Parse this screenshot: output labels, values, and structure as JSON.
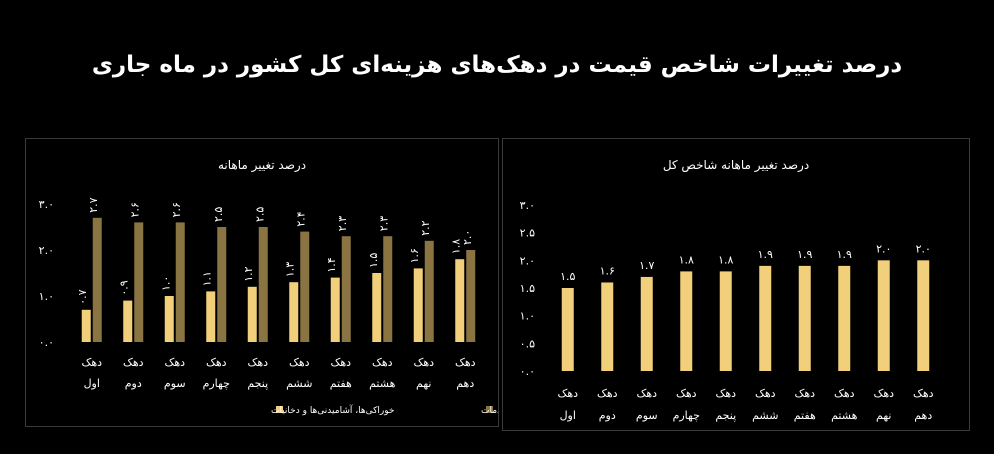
{
  "page_title": "درصد تغییرات شاخص قیمت در دهک‌های هزینه‌ای کل کشور در ماه جاری",
  "colors": {
    "background": "#000000",
    "food": "#f2cf7a",
    "nonfood": "#8a7442",
    "single": "#f2cf7a",
    "text": "#ffffff"
  },
  "chart_data": [
    {
      "type": "bar",
      "title": "درصد تغییر ماهانه",
      "categories": [
        [
          "دهک",
          "اول"
        ],
        [
          "دهک",
          "دوم"
        ],
        [
          "دهک",
          "سوم"
        ],
        [
          "دهک",
          "چهارم"
        ],
        [
          "دهک",
          "پنجم"
        ],
        [
          "دهک",
          "ششم"
        ],
        [
          "دهک",
          "هفتم"
        ],
        [
          "دهک",
          "هشتم"
        ],
        [
          "دهک",
          "نهم"
        ],
        [
          "دهک",
          "دهم"
        ]
      ],
      "series": [
        {
          "name": "خوراکی‌ها، آشامیدنی‌ها و دخانیات",
          "values": [
            0.7,
            0.9,
            1.0,
            1.1,
            1.2,
            1.3,
            1.4,
            1.5,
            1.6,
            1.8
          ],
          "labels": [
            "۰.۷",
            "۰.۹",
            "۱.۰",
            "۱.۱",
            "۱.۲",
            "۱.۳",
            "۱.۴",
            "۱.۵",
            "۱.۶",
            "۱.۸"
          ]
        },
        {
          "name": "کالاهای غیرخوراکی و خدمات",
          "values": [
            2.7,
            2.6,
            2.6,
            2.5,
            2.5,
            2.4,
            2.3,
            2.3,
            2.2,
            2.0
          ],
          "labels": [
            "۲.۷",
            "۲.۶",
            "۲.۶",
            "۲.۵",
            "۲.۵",
            "۲.۴",
            "۲.۳",
            "۲.۳",
            "۲.۲",
            "۲.۰"
          ]
        }
      ],
      "yticks": [
        0,
        1,
        2,
        3
      ],
      "ytick_labels": [
        "۰.۰",
        "۱.۰",
        "۲.۰",
        "۳.۰"
      ],
      "ylim": [
        0,
        3
      ],
      "grid": false,
      "legend_position": "bottom"
    },
    {
      "type": "bar",
      "title": "درصد تغییر ماهانه شاخص کل",
      "categories": [
        [
          "دهک",
          "اول"
        ],
        [
          "دهک",
          "دوم"
        ],
        [
          "دهک",
          "سوم"
        ],
        [
          "دهک",
          "چهارم"
        ],
        [
          "دهک",
          "پنجم"
        ],
        [
          "دهک",
          "ششم"
        ],
        [
          "دهک",
          "هفتم"
        ],
        [
          "دهک",
          "هشتم"
        ],
        [
          "دهک",
          "نهم"
        ],
        [
          "دهک",
          "دهم"
        ]
      ],
      "series": [
        {
          "values": [
            1.5,
            1.6,
            1.7,
            1.8,
            1.8,
            1.9,
            1.9,
            1.9,
            2.0,
            2.0
          ],
          "labels": [
            "۱.۵",
            "۱.۶",
            "۱.۷",
            "۱.۸",
            "۱.۸",
            "۱.۹",
            "۱.۹",
            "۱.۹",
            "۲.۰",
            "۲.۰"
          ]
        }
      ],
      "yticks": [
        0,
        0.5,
        1,
        1.5,
        2,
        2.5,
        3
      ],
      "ytick_labels": [
        "۰.۰",
        "۰.۵",
        "۱.۰",
        "۱.۵",
        "۲.۰",
        "۲.۵",
        "۳.۰"
      ],
      "ylim": [
        0,
        3
      ],
      "grid": false,
      "legend_position": "none"
    }
  ]
}
